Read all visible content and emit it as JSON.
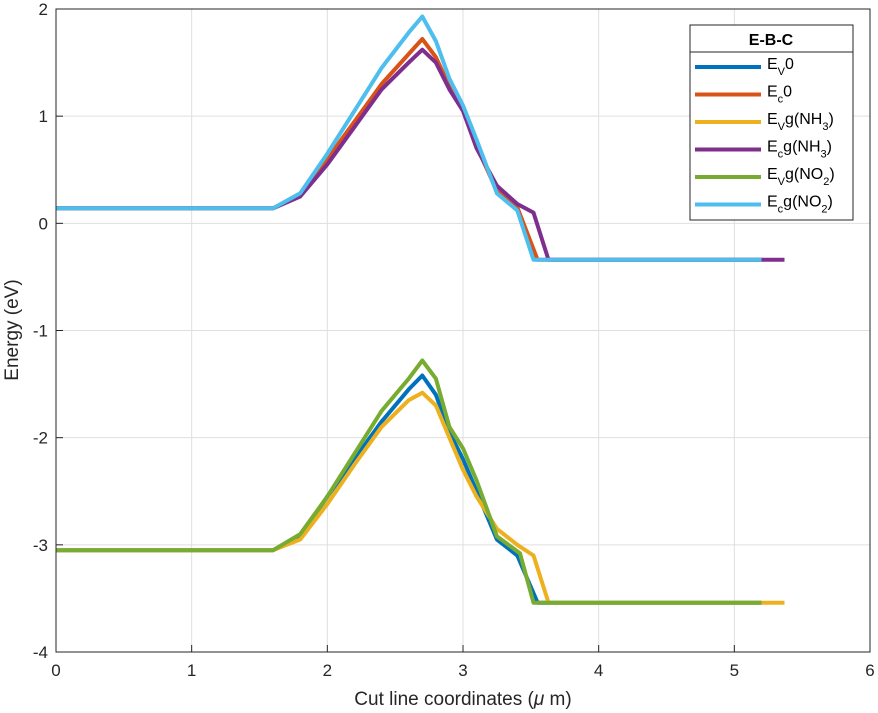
{
  "chart_data": {
    "type": "line",
    "xlabel_main": "Cut line coordinates (",
    "xlabel_mu": "μ",
    "xlabel_end": " m)",
    "ylabel": "Energy (eV)",
    "xlim": [
      0,
      6
    ],
    "ylim": [
      -4,
      2
    ],
    "xticks": [
      "0",
      "1",
      "2",
      "3",
      "4",
      "5",
      "6"
    ],
    "yticks": [
      "2",
      "1",
      "0",
      "-1",
      "-2",
      "-3",
      "-4"
    ],
    "grid": true,
    "legend": {
      "title": "E-B-C",
      "placement": "top-right",
      "entries": [
        {
          "base": "E",
          "sub": "V",
          "rest": "0",
          "sub2": "",
          "rest2": ""
        },
        {
          "base": "E",
          "sub": "c",
          "rest": "0",
          "sub2": "",
          "rest2": ""
        },
        {
          "base": "E",
          "sub": "V",
          "rest": "g(NH",
          "sub2": "3",
          "rest2": ")"
        },
        {
          "base": "E",
          "sub": "c",
          "rest": "g(NH",
          "sub2": "3",
          "rest2": ")"
        },
        {
          "base": "E",
          "sub": "V",
          "rest": "g(NO",
          "sub2": "2",
          "rest2": ")"
        },
        {
          "base": "E",
          "sub": "c",
          "rest": "g(NO",
          "sub2": "2",
          "rest2": ")"
        }
      ]
    },
    "series": [
      {
        "color": "#0072BD",
        "points": [
          [
            0,
            -3.05
          ],
          [
            1.6,
            -3.05
          ],
          [
            1.8,
            -2.92
          ],
          [
            2.0,
            -2.55
          ],
          [
            2.2,
            -2.2
          ],
          [
            2.4,
            -1.85
          ],
          [
            2.6,
            -1.55
          ],
          [
            2.7,
            -1.42
          ],
          [
            2.8,
            -1.6
          ],
          [
            2.9,
            -1.95
          ],
          [
            3.0,
            -2.2
          ],
          [
            3.1,
            -2.5
          ],
          [
            3.25,
            -2.95
          ],
          [
            3.4,
            -3.1
          ],
          [
            3.55,
            -3.54
          ],
          [
            5.2,
            -3.54
          ]
        ]
      },
      {
        "color": "#D95319",
        "points": [
          [
            0,
            0.14
          ],
          [
            1.6,
            0.14
          ],
          [
            1.8,
            0.26
          ],
          [
            2.0,
            0.6
          ],
          [
            2.2,
            0.95
          ],
          [
            2.4,
            1.3
          ],
          [
            2.6,
            1.58
          ],
          [
            2.7,
            1.72
          ],
          [
            2.8,
            1.55
          ],
          [
            2.9,
            1.28
          ],
          [
            3.0,
            1.05
          ],
          [
            3.1,
            0.72
          ],
          [
            3.25,
            0.3
          ],
          [
            3.4,
            0.15
          ],
          [
            3.55,
            -0.34
          ],
          [
            5.2,
            -0.34
          ]
        ]
      },
      {
        "color": "#EDB120",
        "points": [
          [
            0,
            -3.05
          ],
          [
            1.6,
            -3.05
          ],
          [
            1.8,
            -2.95
          ],
          [
            2.0,
            -2.62
          ],
          [
            2.2,
            -2.25
          ],
          [
            2.4,
            -1.9
          ],
          [
            2.6,
            -1.65
          ],
          [
            2.7,
            -1.58
          ],
          [
            2.8,
            -1.7
          ],
          [
            2.9,
            -2.0
          ],
          [
            3.0,
            -2.3
          ],
          [
            3.1,
            -2.55
          ],
          [
            3.25,
            -2.85
          ],
          [
            3.4,
            -3.0
          ],
          [
            3.52,
            -3.1
          ],
          [
            3.63,
            -3.54
          ],
          [
            5.37,
            -3.54
          ]
        ]
      },
      {
        "color": "#7E2F8E",
        "points": [
          [
            0,
            0.14
          ],
          [
            1.6,
            0.14
          ],
          [
            1.8,
            0.25
          ],
          [
            2.0,
            0.55
          ],
          [
            2.2,
            0.9
          ],
          [
            2.4,
            1.25
          ],
          [
            2.6,
            1.5
          ],
          [
            2.7,
            1.62
          ],
          [
            2.8,
            1.5
          ],
          [
            2.9,
            1.25
          ],
          [
            3.0,
            1.05
          ],
          [
            3.1,
            0.7
          ],
          [
            3.25,
            0.35
          ],
          [
            3.4,
            0.18
          ],
          [
            3.52,
            0.1
          ],
          [
            3.63,
            -0.34
          ],
          [
            5.37,
            -0.34
          ]
        ]
      },
      {
        "color": "#77AC30",
        "points": [
          [
            0,
            -3.05
          ],
          [
            1.6,
            -3.05
          ],
          [
            1.8,
            -2.9
          ],
          [
            2.0,
            -2.55
          ],
          [
            2.2,
            -2.15
          ],
          [
            2.4,
            -1.75
          ],
          [
            2.6,
            -1.45
          ],
          [
            2.7,
            -1.28
          ],
          [
            2.8,
            -1.45
          ],
          [
            2.9,
            -1.9
          ],
          [
            3.0,
            -2.1
          ],
          [
            3.1,
            -2.4
          ],
          [
            3.25,
            -2.92
          ],
          [
            3.42,
            -3.08
          ],
          [
            3.52,
            -3.54
          ],
          [
            5.2,
            -3.54
          ]
        ]
      },
      {
        "color": "#4DBEEE",
        "points": [
          [
            0,
            0.14
          ],
          [
            1.6,
            0.14
          ],
          [
            1.8,
            0.28
          ],
          [
            2.0,
            0.65
          ],
          [
            2.2,
            1.05
          ],
          [
            2.4,
            1.45
          ],
          [
            2.6,
            1.78
          ],
          [
            2.7,
            1.93
          ],
          [
            2.8,
            1.7
          ],
          [
            2.9,
            1.35
          ],
          [
            3.0,
            1.1
          ],
          [
            3.1,
            0.78
          ],
          [
            3.25,
            0.28
          ],
          [
            3.4,
            0.12
          ],
          [
            3.52,
            -0.34
          ],
          [
            5.2,
            -0.34
          ]
        ]
      }
    ]
  }
}
